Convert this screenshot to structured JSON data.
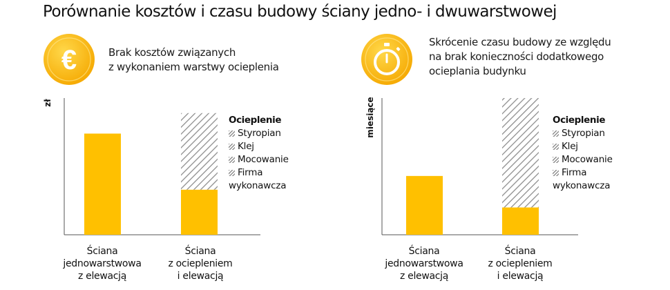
{
  "title": "Porównanie kosztów i czasu budowy ściany jedno- i dwuwarstwowej",
  "colors": {
    "accent": "#ffc000",
    "icon_dark": "#f5a800",
    "icon_light": "#ffd84a",
    "hatch": "#8e8e8e",
    "axis": "#555555"
  },
  "panels": [
    {
      "icon": "euro-coin-icon",
      "benefit_lines": [
        "Brak kosztów związanych",
        "z wykonaniem warstwy ocieplenia"
      ]
    },
    {
      "icon": "stopwatch-icon",
      "benefit_lines": [
        "Skrócenie czasu budowy ze względu",
        "na brak konieczności dodatkowego",
        "ocieplania budynku"
      ]
    }
  ],
  "chart_data": [
    {
      "type": "bar",
      "stacked": true,
      "title": "",
      "ylabel": "zł",
      "xlabel": "",
      "ylim": [
        0,
        100
      ],
      "y_ticks": false,
      "grid": false,
      "categories": [
        [
          "Ściana",
          "jednowarstwowa",
          "z elewacją"
        ],
        [
          "Ściana",
          "z ociepleniem",
          "i elewacją"
        ]
      ],
      "series": [
        {
          "pattern": "solid",
          "color": "#ffc000",
          "values": [
            74,
            33
          ]
        },
        {
          "name": "Ocieplenie",
          "pattern": "hatched",
          "color": "#8e8e8e",
          "values": [
            0,
            56
          ]
        }
      ],
      "legend": {
        "title": "Ocieplenie",
        "items": [
          [
            "Styropian"
          ],
          [
            "Klej"
          ],
          [
            "Mocowanie"
          ],
          [
            "Firma",
            "wykonawcza"
          ]
        ],
        "placement": "right"
      }
    },
    {
      "type": "bar",
      "stacked": true,
      "title": "",
      "ylabel": "miesiące",
      "xlabel": "",
      "ylim": [
        0,
        100
      ],
      "y_ticks": false,
      "grid": false,
      "categories": [
        [
          "Ściana",
          "jednowarstwowa",
          "z elewacją"
        ],
        [
          "Ściana",
          "z ociepleniem",
          "i elewacją"
        ]
      ],
      "series": [
        {
          "pattern": "solid",
          "color": "#ffc000",
          "values": [
            43,
            20
          ]
        },
        {
          "name": "Ocieplenie",
          "pattern": "hatched",
          "color": "#8e8e8e",
          "values": [
            0,
            80
          ]
        }
      ],
      "legend": {
        "title": "Ocieplenie",
        "items": [
          [
            "Styropian"
          ],
          [
            "Klej"
          ],
          [
            "Mocowanie"
          ],
          [
            "Firma",
            "wykonawcza"
          ]
        ],
        "placement": "right"
      }
    }
  ]
}
